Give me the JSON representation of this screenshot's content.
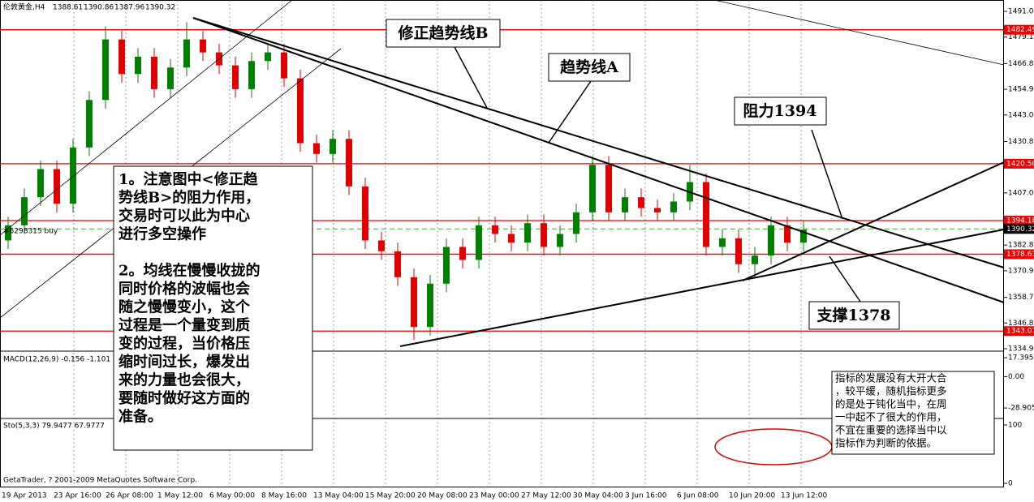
{
  "header": {
    "symbol": "伦敦黄金,H4",
    "ohlc": [
      1388.61,
      1390.86,
      1387.96,
      1390.32
    ]
  },
  "chart_data": {
    "type": "candlestick",
    "up_color": "#008000",
    "down_color": "#e00000",
    "open": [
      1385,
      1392,
      1405,
      1418,
      1402,
      1428,
      1450,
      1478,
      1462,
      1470,
      1455,
      1465,
      1478,
      1472,
      1466,
      1455,
      1468,
      1472,
      1460,
      1430,
      1425,
      1432,
      1410,
      1385,
      1380,
      1368,
      1345,
      1365,
      1382,
      1376,
      1392,
      1388,
      1384,
      1393,
      1382,
      1388,
      1398,
      1420,
      1398,
      1405,
      1400,
      1398,
      1403,
      1412,
      1382,
      1386,
      1374,
      1378,
      1392,
      1384
    ],
    "high": [
      1396,
      1409,
      1422,
      1422,
      1432,
      1454,
      1484,
      1482,
      1474,
      1474,
      1469,
      1486,
      1482,
      1476,
      1470,
      1472,
      1476,
      1476,
      1464,
      1434,
      1436,
      1436,
      1414,
      1389,
      1384,
      1372,
      1369,
      1386,
      1386,
      1396,
      1396,
      1392,
      1397,
      1397,
      1392,
      1402,
      1424,
      1424,
      1409,
      1409,
      1404,
      1407,
      1420,
      1416,
      1390,
      1390,
      1382,
      1396,
      1396,
      1394
    ],
    "low": [
      1381,
      1388,
      1401,
      1398,
      1398,
      1424,
      1446,
      1458,
      1458,
      1451,
      1451,
      1461,
      1468,
      1462,
      1451,
      1451,
      1464,
      1456,
      1426,
      1421,
      1421,
      1406,
      1381,
      1376,
      1364,
      1339,
      1341,
      1361,
      1372,
      1372,
      1384,
      1380,
      1380,
      1378,
      1378,
      1384,
      1394,
      1394,
      1394,
      1396,
      1394,
      1394,
      1399,
      1378,
      1378,
      1370,
      1368,
      1374,
      1380,
      1380
    ],
    "close": [
      1392,
      1405,
      1418,
      1402,
      1428,
      1450,
      1478,
      1462,
      1470,
      1455,
      1465,
      1478,
      1472,
      1466,
      1455,
      1468,
      1472,
      1460,
      1430,
      1425,
      1432,
      1410,
      1385,
      1380,
      1368,
      1345,
      1365,
      1382,
      1376,
      1392,
      1388,
      1384,
      1393,
      1382,
      1388,
      1398,
      1420,
      1398,
      1405,
      1400,
      1398,
      1403,
      1412,
      1382,
      1386,
      1374,
      1378,
      1392,
      1384,
      1390
    ],
    "ylim": [
      1495.5,
      1334.15
    ],
    "yticks": [
      {
        "value": 1491,
        "label": "1491.00"
      },
      {
        "value": 1479.1,
        "label": "1479.10"
      },
      {
        "value": 1466.85,
        "label": "1466.85"
      },
      {
        "value": 1454.95,
        "label": "1454.95"
      },
      {
        "value": 1443.05,
        "label": "1443.05"
      },
      {
        "value": 1430.8,
        "label": "1430.80"
      },
      {
        "value": 1407,
        "label": "1407.00"
      },
      {
        "value": 1382.85,
        "label": "1382.85"
      },
      {
        "value": 1370.95,
        "label": "1370.95"
      },
      {
        "value": 1358.7,
        "label": "1358.70"
      },
      {
        "value": 1346.8,
        "label": "1346.80"
      },
      {
        "value": 1334.9,
        "label": "1334.90"
      }
    ],
    "levels": [
      {
        "value": 1482.49,
        "label": "1482.49"
      },
      {
        "value": 1420.5,
        "label": "1420.50"
      },
      {
        "value": 1394.18,
        "label": "1394.18"
      },
      {
        "value": 1378.63,
        "label": "1378.63"
      },
      {
        "value": 1343.07,
        "label": "1343.07"
      }
    ],
    "bid": {
      "value": 1390.32,
      "label": "1390.32"
    },
    "x_labels": [
      "19 Apr 2013",
      "23 Apr 16:00",
      "26 Apr 08:00",
      "1 May 12:00",
      "6 May 00:00",
      "8 May 16:00",
      "13 May 04:00",
      "15 May 20:00",
      "20 May 08:00",
      "23 May 00:00",
      "27 May 12:00",
      "30 May 04:00",
      "3 Jun 16:00",
      "6 Jun 08:00",
      "10 Jun 20:00",
      "13 Jun 12:00"
    ]
  },
  "order_label": "#6298315 buy",
  "macd": {
    "label": "MACD(12,26,9) -0.156 -1.101",
    "ylim": [
      22.7,
      -37.8
    ],
    "yticks": [
      {
        "value": 17.395,
        "label": "17.395"
      },
      {
        "value": 0,
        "label": "0.00"
      },
      {
        "value": -28.905,
        "label": "-28.905"
      }
    ]
  },
  "stoch": {
    "label": "Sto(5,3,3) 79.9477 67.9777",
    "ylim": [
      109.7,
      -5.6
    ],
    "yticks": [
      100,
      0
    ]
  },
  "copyright": "GetaTrader, ? 2001-2009 MetaQuotes Software Corp.",
  "annotations": {
    "trend_b": "修正趋势线B",
    "trend_a": "趋势线A",
    "resistance": "阻力1394",
    "support": "支撑1378",
    "note_left": [
      [
        "1。注意图中<修正趋",
        "势线B>的阻力作用，",
        "交易时可以此为中心",
        "进行多空操作"
      ],
      [
        "2。均线在慢慢收拢的",
        "同时价格的波幅也会",
        "随之慢慢变小，这个",
        "过程是一个量变到质",
        "变的过程，当价格压",
        "缩时间过长，爆发出",
        "来的力量也会很大，",
        "要随时做好这方面的",
        "准备。"
      ]
    ],
    "note_right": [
      "指标的发展没有大开大合",
      "，较平缓，随机指标更多",
      "的是处于钝化当中，在周",
      "一中起不了很大的作用，",
      "不宜在重要的选择当中以",
      "指标作为判断的依据。"
    ]
  }
}
